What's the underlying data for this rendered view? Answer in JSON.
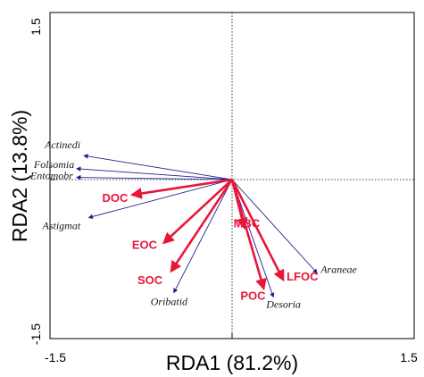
{
  "chart_data": {
    "type": "scatter",
    "subtype": "rda-biplot",
    "xlabel": "RDA1 (81.2%)",
    "ylabel": "RDA2 (13.8%)",
    "xlim": [
      -1.5,
      1.5
    ],
    "ylim": [
      -1.5,
      1.5
    ],
    "x_tick_labels": [
      "-1.5",
      "1.5"
    ],
    "y_tick_labels": [
      "1.5",
      "-1.5"
    ],
    "grid": false,
    "reference_lines": "dotted lines at x=0 and y=0",
    "species_color": "#1f1f8f",
    "env_color": "#e8173a",
    "species_arrows": [
      {
        "label": "Actinedi",
        "x": -1.22,
        "y": 0.22
      },
      {
        "label": "Folsomia",
        "x": -1.28,
        "y": 0.1
      },
      {
        "label": "Entomobr",
        "x": -1.28,
        "y": 0.02
      },
      {
        "label": "Astigmat",
        "x": -1.18,
        "y": -0.35
      },
      {
        "label": "Oribatid",
        "x": -0.48,
        "y": -1.04
      },
      {
        "label": "Araneae",
        "x": 0.7,
        "y": -0.86
      },
      {
        "label": "Desoria",
        "x": 0.34,
        "y": -1.08
      }
    ],
    "env_arrows": [
      {
        "label": "DOC",
        "x": -0.82,
        "y": -0.14
      },
      {
        "label": "EOC",
        "x": -0.56,
        "y": -0.58
      },
      {
        "label": "SOC",
        "x": -0.5,
        "y": -0.84
      },
      {
        "label": "MBC",
        "x": 0.1,
        "y": -0.44
      },
      {
        "label": "POC",
        "x": 0.26,
        "y": -1.0
      },
      {
        "label": "LFOC",
        "x": 0.42,
        "y": -0.92
      }
    ]
  }
}
